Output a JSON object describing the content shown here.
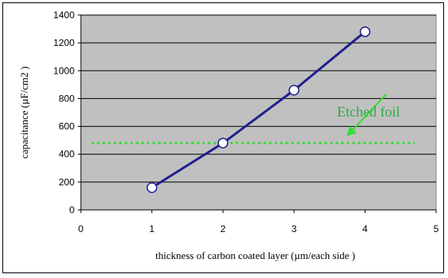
{
  "chart_data": {
    "type": "line",
    "xlabel": "thickness of carbon coated layer (µm/each side )",
    "ylabel": "capacitance (µF/cm2 )",
    "xlim": [
      0,
      5
    ],
    "ylim": [
      0,
      1400
    ],
    "x_ticks": [
      "0",
      "1",
      "2",
      "3",
      "4",
      "5"
    ],
    "y_ticks": [
      "0",
      "200",
      "400",
      "600",
      "800",
      "1000",
      "1200",
      "1400"
    ],
    "grid": "horizontal",
    "series": [
      {
        "x": [
          1,
          2,
          3,
          4
        ],
        "y": [
          160,
          480,
          860,
          1280
        ]
      }
    ],
    "reference_line": {
      "y": 480,
      "x_range": [
        0.15,
        4.7
      ],
      "label": "Etched foil"
    },
    "colors": {
      "plot_background": "#c0c0c0",
      "series_line": "#1f1f8f",
      "reference_line": "#33dd33",
      "annotation_text": "#2eaa44",
      "marker_fill": "#ffffff"
    }
  }
}
